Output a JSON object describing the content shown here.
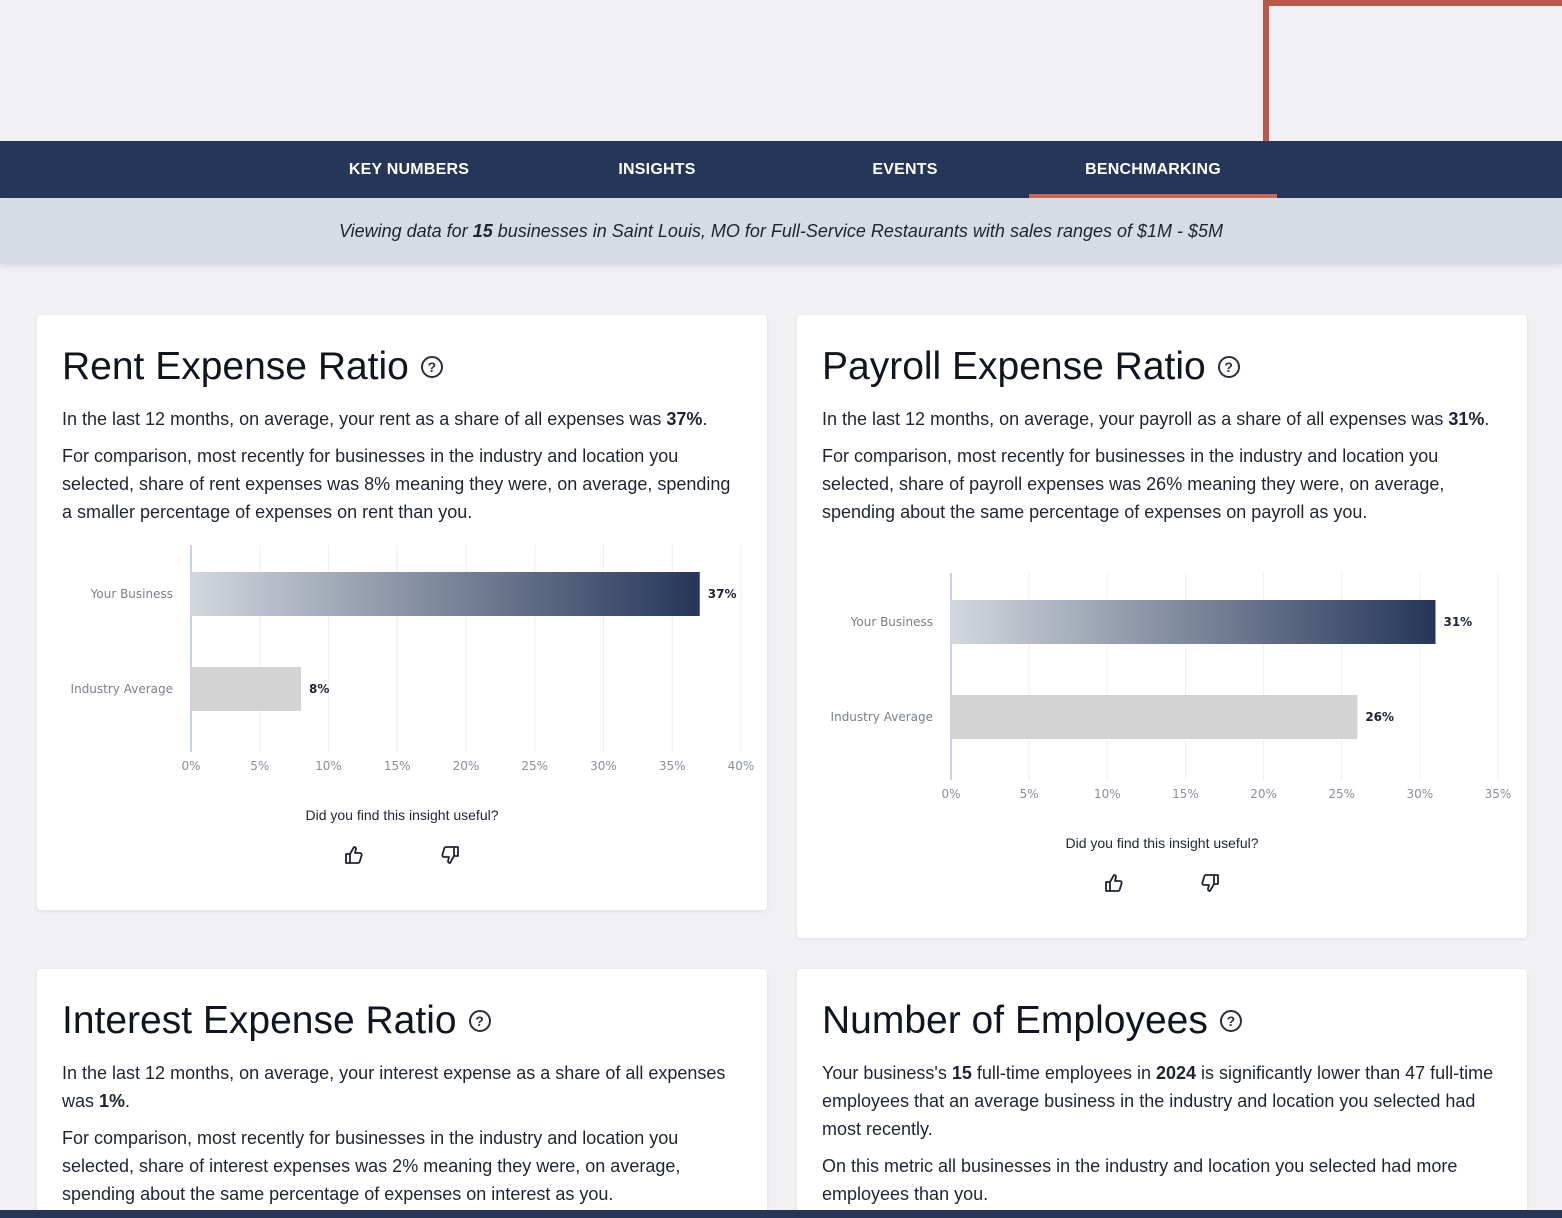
{
  "nav": {
    "tabs": [
      {
        "label": "KEY NUMBERS",
        "active": false
      },
      {
        "label": "INSIGHTS",
        "active": false
      },
      {
        "label": "EVENTS",
        "active": false
      },
      {
        "label": "BENCHMARKING",
        "active": true
      }
    ]
  },
  "filter": {
    "prefix": "Viewing data for ",
    "count": "15",
    "suffix": " businesses in Saint Louis, MO for Full-Service Restaurants with sales ranges of $1M - $5M"
  },
  "colors": {
    "nav_bg": "#253658",
    "accent": "#c56a56",
    "bar_gradient_start": "#d3d7de",
    "bar_gradient_end": "#253658",
    "industry_bar": "#d3d3d3"
  },
  "cards": {
    "rent": {
      "title": "Rent Expense Ratio",
      "p1_before": "In the last 12 months, on average, your rent as a share of all expenses was ",
      "p1_value": "37%",
      "p1_after": ".",
      "p2": "For comparison, most recently for businesses in the industry and location you selected, share of rent expenses was 8% meaning they were, on average, spending a smaller percentage of expenses on rent than you.",
      "feedback_question": "Did you find this insight useful?"
    },
    "payroll": {
      "title": "Payroll Expense Ratio",
      "p1_before": "In the last 12 months, on average, your payroll as a share of all expenses was ",
      "p1_value": "31%",
      "p1_after": ".",
      "p2": "For comparison, most recently for businesses in the industry and location you selected, share of payroll expenses was 26% meaning they were, on average, spending about the same percentage of expenses on payroll as you.",
      "feedback_question": "Did you find this insight useful?"
    },
    "interest": {
      "title": "Interest Expense Ratio",
      "p1_before": "In the last 12 months, on average, your interest expense as a share of all expenses was ",
      "p1_value": "1%",
      "p1_after": ".",
      "p2": "For comparison, most recently for businesses in the industry and location you selected, share of interest expenses was 2% meaning they were, on average, spending about the same percentage of expenses on interest as you."
    },
    "employees": {
      "title": "Number of Employees",
      "p1_a": "Your business's ",
      "p1_count": "15",
      "p1_b": " full-time employees in ",
      "p1_year": "2024",
      "p1_c": " is significantly lower than 47 full-time employees that an average business in the industry and location you selected had most recently.",
      "p2": "On this metric all businesses in the industry and location you selected had more employees than you."
    }
  },
  "chart_data": [
    {
      "type": "bar",
      "orientation": "horizontal",
      "categories": [
        "Your Business",
        "Industry Average"
      ],
      "values": [
        37,
        8
      ],
      "data_labels": [
        "37%",
        "8%"
      ],
      "xlim": [
        0,
        40
      ],
      "xticks": [
        "0%",
        "5%",
        "10%",
        "15%",
        "20%",
        "25%",
        "30%",
        "35%",
        "40%"
      ],
      "grid": true
    },
    {
      "type": "bar",
      "orientation": "horizontal",
      "categories": [
        "Your Business",
        "Industry Average"
      ],
      "values": [
        31,
        26
      ],
      "data_labels": [
        "31%",
        "26%"
      ],
      "xlim": [
        0,
        35
      ],
      "xticks": [
        "0%",
        "5%",
        "10%",
        "15%",
        "20%",
        "25%",
        "30%",
        "35%"
      ],
      "grid": true
    }
  ]
}
